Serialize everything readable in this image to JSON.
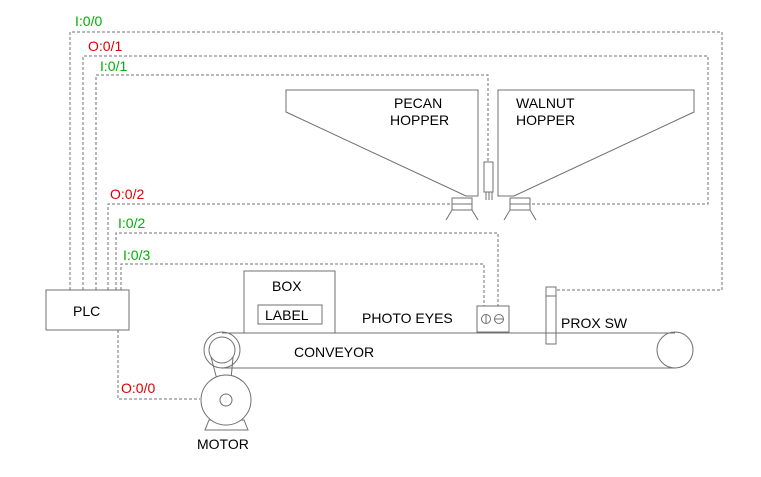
{
  "colors": {
    "input": "#00b000",
    "output": "#e00000",
    "line": "#707070",
    "text": "#000000"
  },
  "io": {
    "i00": "I:0/0",
    "o01": "O:0/1",
    "i01": "I:0/1",
    "o02": "O:0/2",
    "i02": "I:0/2",
    "i03": "I:0/3",
    "o00": "O:0/0"
  },
  "components": {
    "plc": "PLC",
    "pecan_hopper": [
      "PECAN",
      "HOPPER"
    ],
    "walnut_hopper": [
      "WALNUT",
      "HOPPER"
    ],
    "box": "BOX",
    "label": "LABEL",
    "photo_eyes": "PHOTO EYES",
    "prox_sw": "PROX SW",
    "conveyor": "CONVEYOR",
    "motor": "MOTOR"
  }
}
